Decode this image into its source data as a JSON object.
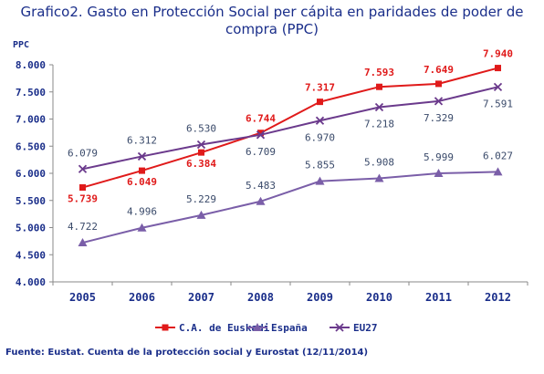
{
  "title_line1": "Grafico2. Gasto en Protección Social per cápita en paridades de poder de",
  "title_line2": "compra (PPC)",
  "source": "Fuente: Eustat. Cuenta de la protección social y Eurostat (12/11/2014)",
  "chart_data": {
    "type": "line",
    "ylabel": "PPC",
    "xlabel": "",
    "ylim": [
      4000,
      8000
    ],
    "yticks": [
      "4.000",
      "4.500",
      "5.000",
      "5.500",
      "6.000",
      "6.500",
      "7.000",
      "7.500",
      "8.000"
    ],
    "categories": [
      "2005",
      "2006",
      "2007",
      "2008",
      "2009",
      "2010",
      "2011",
      "2012"
    ],
    "grid": false,
    "legend_position": "bottom",
    "series": [
      {
        "name": "C.A. de Euskadi",
        "color": "#e01a1a",
        "marker": "square",
        "values": [
          5739,
          6049,
          6384,
          6744,
          7317,
          7593,
          7649,
          7940
        ],
        "labels": [
          "5.739",
          "6.049",
          "6.384",
          "6.744",
          "7.317",
          "7.593",
          "7.649",
          "7.940"
        ]
      },
      {
        "name": "España",
        "color": "#7a5ea8",
        "marker": "triangle",
        "values": [
          4722,
          4996,
          5229,
          5483,
          5855,
          5908,
          5999,
          6027
        ],
        "labels": [
          "4.722",
          "4.996",
          "5.229",
          "5.483",
          "5.855",
          "5.908",
          "5.999",
          "6.027"
        ]
      },
      {
        "name": "EU27",
        "color": "#6b3a8c",
        "marker": "x",
        "values": [
          6079,
          6312,
          6530,
          6709,
          6970,
          7218,
          7329,
          7591
        ],
        "labels": [
          "6.079",
          "6.312",
          "6.530",
          "6.709",
          "6.970",
          "7.218",
          "7.329",
          "7.591"
        ]
      }
    ]
  }
}
